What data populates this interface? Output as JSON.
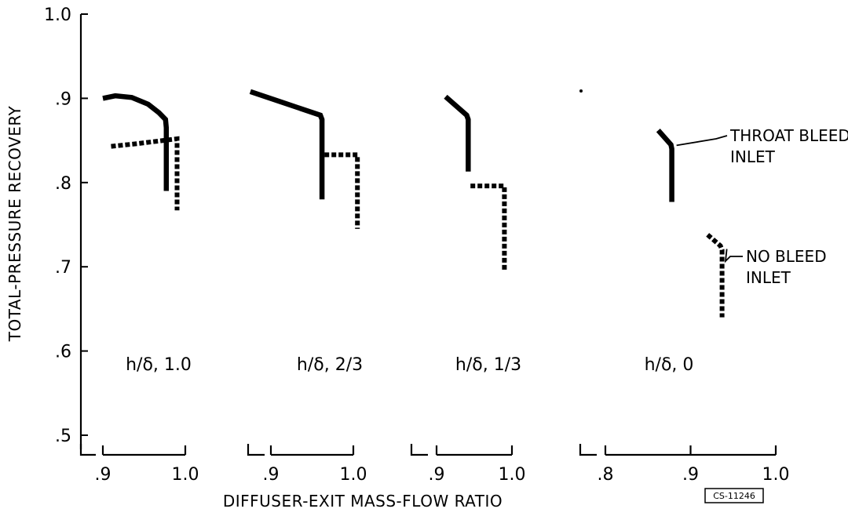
{
  "chart_data": {
    "type": "line",
    "title": "",
    "xlabel": "DIFFUSER-EXIT MASS-FLOW RATIO",
    "ylabel": "TOTAL-PRESSURE RECOVERY",
    "ylim": [
      0.5,
      1.0
    ],
    "y_ticks": [
      "1.0",
      ".9",
      ".8",
      ".7",
      ".6",
      ".5"
    ],
    "grid": false,
    "legend": "none",
    "stamp": "CS-11246",
    "panels": [
      {
        "label": "h/δ, 1.0",
        "x_ticks": [
          {
            "v": 0.9,
            "t": ".9"
          },
          {
            "v": 1.0,
            "t": "1.0"
          }
        ],
        "xlim": [
          0.9,
          1.0
        ],
        "series": [
          {
            "style": "solid",
            "points": [
              [
                0.9,
                0.9
              ],
              [
                0.915,
                0.903
              ],
              [
                0.935,
                0.901
              ],
              [
                0.955,
                0.893
              ],
              [
                0.968,
                0.883
              ],
              [
                0.976,
                0.875
              ],
              [
                0.977,
                0.865
              ],
              [
                0.977,
                0.79
              ]
            ]
          },
          {
            "style": "dashed",
            "points": [
              [
                0.91,
                0.843
              ],
              [
                0.94,
                0.846
              ],
              [
                0.99,
                0.852
              ],
              [
                0.99,
                0.825
              ],
              [
                0.99,
                0.767
              ]
            ]
          }
        ]
      },
      {
        "label": "h/δ, 2/3",
        "x_ticks": [
          {
            "v": 0.9,
            "t": ".9"
          },
          {
            "v": 1.0,
            "t": "1.0"
          }
        ],
        "xlim": [
          0.9,
          1.0
        ],
        "series": [
          {
            "style": "solid",
            "points": [
              [
                0.875,
                0.908
              ],
              [
                0.96,
                0.88
              ],
              [
                0.962,
                0.875
              ],
              [
                0.962,
                0.78
              ]
            ]
          },
          {
            "style": "dashed",
            "points": [
              [
                0.965,
                0.833
              ],
              [
                1.005,
                0.833
              ],
              [
                1.005,
                0.745
              ]
            ]
          }
        ]
      },
      {
        "label": "h/δ, 1/3",
        "x_ticks": [
          {
            "v": 0.9,
            "t": ".9"
          },
          {
            "v": 1.0,
            "t": "1.0"
          }
        ],
        "xlim": [
          0.9,
          1.0
        ],
        "series": [
          {
            "style": "solid",
            "points": [
              [
                0.912,
                0.902
              ],
              [
                0.94,
                0.88
              ],
              [
                0.942,
                0.875
              ],
              [
                0.942,
                0.813
              ]
            ]
          },
          {
            "style": "dashed",
            "points": [
              [
                0.945,
                0.796
              ],
              [
                0.99,
                0.796
              ],
              [
                0.99,
                0.696
              ]
            ]
          }
        ]
      },
      {
        "label": "h/δ, 0",
        "x_ticks": [
          {
            "v": 0.8,
            "t": ".8"
          },
          {
            "v": 0.9,
            "t": ".9"
          },
          {
            "v": 1.0,
            "t": "1.0"
          }
        ],
        "xlim": [
          0.8,
          1.0
        ],
        "series": [
          {
            "style": "solid",
            "name": "THROAT BLEED INLET",
            "points": [
              [
                0.862,
                0.862
              ],
              [
                0.877,
                0.845
              ],
              [
                0.878,
                0.84
              ],
              [
                0.878,
                0.777
              ]
            ]
          },
          {
            "style": "dashed",
            "name": "NO BLEED INLET",
            "points": [
              [
                0.92,
                0.738
              ],
              [
                0.935,
                0.725
              ],
              [
                0.937,
                0.72
              ],
              [
                0.937,
                0.64
              ]
            ]
          }
        ]
      }
    ],
    "annotations": [
      {
        "lines": [
          "THROAT BLEED",
          "INLET"
        ],
        "panel": 3,
        "anchor": [
          0.878,
          0.846
        ]
      },
      {
        "lines": [
          "NO BLEED",
          "INLET"
        ],
        "panel": 3,
        "anchor": [
          0.937,
          0.723
        ]
      }
    ]
  }
}
